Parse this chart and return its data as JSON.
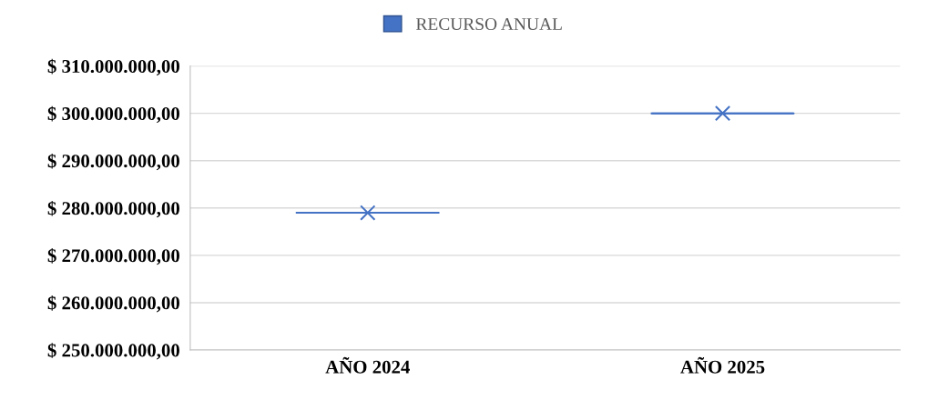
{
  "chart_data": {
    "type": "box",
    "categories": [
      "AÑO 2024",
      "AÑO 2025"
    ],
    "series": [
      {
        "name": "RECURSO ANUAL",
        "color": "#4472c4",
        "boxes": [
          {
            "low": 279000000,
            "q1": 279000000,
            "median": 279000000,
            "q3": 279000000,
            "high": 279000000,
            "mean": 279000000
          },
          {
            "low": 300000000,
            "q1": 300000000,
            "median": 300000000,
            "q3": 300000000,
            "high": 300000000,
            "mean": 300000000
          }
        ]
      }
    ],
    "ylim": [
      250000000,
      310000000
    ],
    "yticks": [
      {
        "value": 250000000,
        "label": "$ 250.000.000,00"
      },
      {
        "value": 260000000,
        "label": "$ 260.000.000,00"
      },
      {
        "value": 270000000,
        "label": "$ 270.000.000,00"
      },
      {
        "value": 280000000,
        "label": "$ 280.000.000,00"
      },
      {
        "value": 290000000,
        "label": "$ 290.000.000,00"
      },
      {
        "value": 300000000,
        "label": "$ 300.000.000,00"
      },
      {
        "value": 310000000,
        "label": "$ 310.000.000,00"
      }
    ],
    "grid": "y",
    "legend": "top",
    "marker": "cross"
  }
}
